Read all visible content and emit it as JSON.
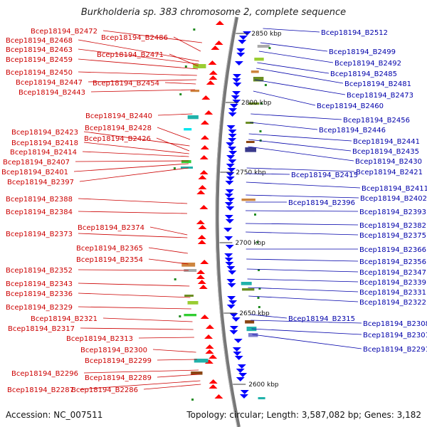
{
  "title": "Burkholderia sp. 383 chromosome 2, complete sequence",
  "accession": "Accession: NC_007511",
  "summary": "Topology: circular; Length: 3,587,082 bp; Genes: 3,182",
  "colors": {
    "left_labels": "#cc0000",
    "right_labels": "#0000aa",
    "backbone": "#777777"
  },
  "kbp_markers": [
    "2850 kbp",
    "2800 kbp",
    "2750 kbp",
    "2700 kbp",
    "2650 kbp",
    "2600 kbp"
  ],
  "left_labels": [
    "Bcep18194_B2472",
    "Bcep18194_B2486",
    "Bcep18194_B2468",
    "Bcep18194_B2463",
    "Bcep18194_B2471",
    "Bcep18194_B2459",
    "Bcep18194_B2450",
    "Bcep18194_B2447",
    "Bcep18194_B2454",
    "Bcep18194_B2443",
    "Bcep18194_B2440",
    "Bcep18194_B2428",
    "Bcep18194_B2423",
    "Bcep18194_B2426",
    "Bcep18194_B2418",
    "Bcep18194_B2414",
    "Bcep18194_B2407",
    "Bcep18194_B2401",
    "Bcep18194_B2397",
    "Bcep18194_B2388",
    "Bcep18194_B2384",
    "Bcep18194_B2374",
    "Bcep18194_B2373",
    "Bcep18194_B2365",
    "Bcep18194_B2354",
    "Bcep18194_B2352",
    "Bcep18194_B2343",
    "Bcep18194_B2336",
    "Bcep18194_B2329",
    "Bcep18194_B2321",
    "Bcep18194_B2317",
    "Bcep18194_B2313",
    "Bcep18194_B2300",
    "Bcep18194_B2299",
    "Bcep18194_B2296",
    "Bcep18194_B2289",
    "Bcep18194_B2287",
    "Bcep18194_B2286"
  ],
  "right_labels": [
    "Bcep18194_B2512",
    "Bcep18194_B2499",
    "Bcep18194_B2492",
    "Bcep18194_B2485",
    "Bcep18194_B2481",
    "Bcep18194_B2473",
    "Bcep18194_B2460",
    "Bcep18194_B2456",
    "Bcep18194_B2446",
    "Bcep18194_B2441",
    "Bcep18194_B2435",
    "Bcep18194_B2430",
    "Bcep18194_B2415",
    "Bcep18194_B2421",
    "Bcep18194_B2411",
    "Bcep18194_B2402",
    "Bcep18194_B2396",
    "Bcep18194_B2393",
    "Bcep18194_B2382",
    "Bcep18194_B2375",
    "Bcep18194_B2366",
    "Bcep18194_B2356",
    "Bcep18194_B2347",
    "Bcep18194_B2339",
    "Bcep18194_B2331",
    "Bcep18194_B2322",
    "Bcep18194_B2315",
    "Bcep18194_B2308",
    "Bcep18194_B2301",
    "Bcep18194_B2291"
  ]
}
